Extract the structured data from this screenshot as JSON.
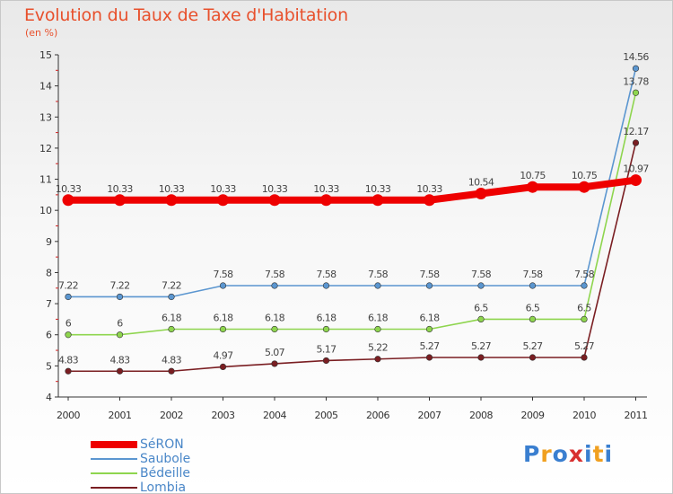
{
  "title": "Evolution du Taux de Taxe d'Habitation",
  "unit": "(en %)",
  "logo": {
    "letters": [
      "P",
      "r",
      "o",
      "x",
      "i",
      "t",
      "i"
    ],
    "colors": [
      "#3a7fd0",
      "#f0a020",
      "#3a7fd0",
      "#d83030",
      "#3a7fd0",
      "#f0a020",
      "#3a7fd0"
    ]
  },
  "chart_data": {
    "type": "line",
    "x": [
      "2000",
      "2001",
      "2002",
      "2003",
      "2004",
      "2005",
      "2006",
      "2007",
      "2008",
      "2009",
      "2010",
      "2011"
    ],
    "ylim": [
      4,
      15
    ],
    "yticks": [
      "4",
      "5",
      "6",
      "7",
      "8",
      "9",
      "10",
      "11",
      "12",
      "13",
      "14",
      "15"
    ],
    "grid": false,
    "legend_position": "bottom-left",
    "series": [
      {
        "name": "SéRON",
        "color": "#ee0000",
        "values": [
          10.33,
          10.33,
          10.33,
          10.33,
          10.33,
          10.33,
          10.33,
          10.33,
          10.54,
          10.75,
          10.75,
          10.97
        ],
        "labels": [
          "10.33",
          "10.33",
          "10.33",
          "10.33",
          "10.33",
          "10.33",
          "10.33",
          "10.33",
          "10.54",
          "10.75",
          "10.75",
          "10.97"
        ]
      },
      {
        "name": "Saubole",
        "color": "#5b96d0",
        "values": [
          7.22,
          7.22,
          7.22,
          7.58,
          7.58,
          7.58,
          7.58,
          7.58,
          7.58,
          7.58,
          7.58,
          14.56
        ],
        "labels": [
          "7.22",
          "7.22",
          "7.22",
          "7.58",
          "7.58",
          "7.58",
          "7.58",
          "7.58",
          "7.58",
          "7.58",
          "7.58",
          "14.56"
        ]
      },
      {
        "name": "Bédeille",
        "color": "#8ed54e",
        "values": [
          6,
          6,
          6.18,
          6.18,
          6.18,
          6.18,
          6.18,
          6.18,
          6.5,
          6.5,
          6.5,
          13.78
        ],
        "labels": [
          "6",
          "6",
          "6.18",
          "6.18",
          "6.18",
          "6.18",
          "6.18",
          "6.18",
          "6.5",
          "6.5",
          "6.5",
          "13.78"
        ]
      },
      {
        "name": "Lombia",
        "color": "#7a1e22",
        "values": [
          4.83,
          4.83,
          4.83,
          4.97,
          5.07,
          5.17,
          5.22,
          5.27,
          5.27,
          5.27,
          5.27,
          12.17
        ],
        "labels": [
          "4.83",
          "4.83",
          "4.83",
          "4.97",
          "5.07",
          "5.17",
          "5.22",
          "5.27",
          "5.27",
          "5.27",
          "5.27",
          "12.17"
        ]
      }
    ]
  }
}
